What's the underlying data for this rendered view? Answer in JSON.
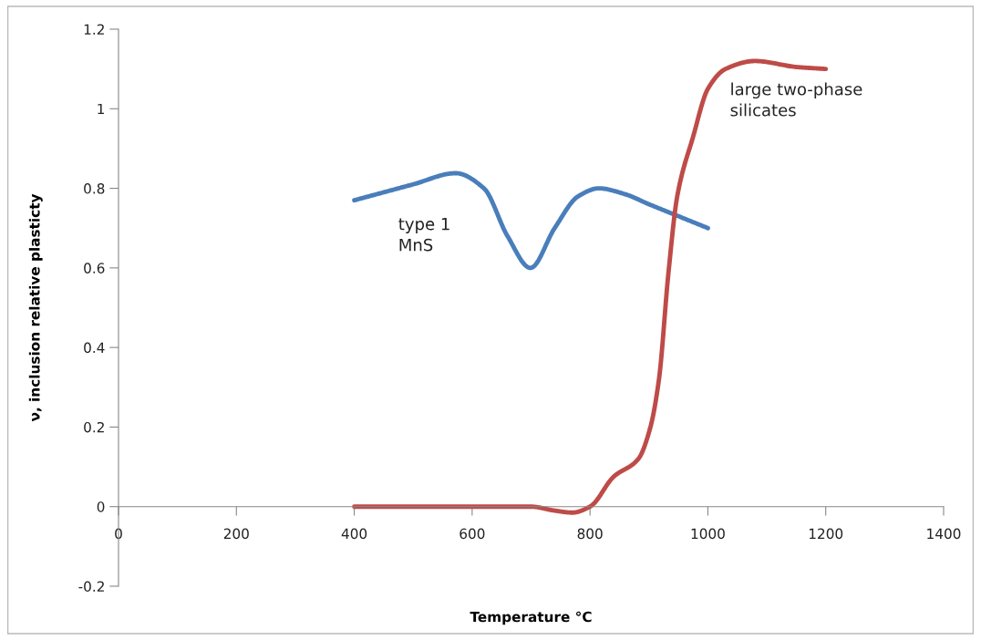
{
  "chart_data": {
    "type": "line",
    "xlabel": "Temperature °C",
    "ylabel": "ν, inclusion relative plasticty",
    "xlim": [
      0,
      1400
    ],
    "ylim": [
      -0.2,
      1.2
    ],
    "xticks": [
      0,
      200,
      400,
      600,
      800,
      1000,
      1200,
      1400
    ],
    "yticks": [
      -0.2,
      0,
      0.2,
      0.4,
      0.6,
      0.8,
      1,
      1.2
    ],
    "grid": false,
    "legend": false,
    "marker": "none",
    "line_style": "solid",
    "series": [
      {
        "color": "#4a7ebb",
        "x": [
          400,
          450,
          500,
          572,
          620,
          660,
          699,
          740,
          780,
          815,
          860,
          900,
          950,
          1000
        ],
        "values": [
          0.77,
          0.79,
          0.81,
          0.838,
          0.8,
          0.68,
          0.6,
          0.7,
          0.78,
          0.8,
          0.785,
          0.76,
          0.73,
          0.7
        ]
      },
      {
        "color": "#be4b48",
        "x": [
          400,
          500,
          600,
          700,
          740,
          770,
          800,
          840,
          882,
          902,
          917,
          933,
          948,
          975,
          1000,
          1030,
          1080,
          1150,
          1200
        ],
        "values": [
          0,
          0,
          0,
          0,
          -0.01,
          -0.015,
          0,
          0.075,
          0.12,
          0.197,
          0.32,
          0.586,
          0.78,
          0.93,
          1.05,
          1.1,
          1.12,
          1.105,
          1.1
        ]
      }
    ],
    "annotations": [
      "type 1\nMnS",
      "large two-phase\nsilicates"
    ]
  }
}
